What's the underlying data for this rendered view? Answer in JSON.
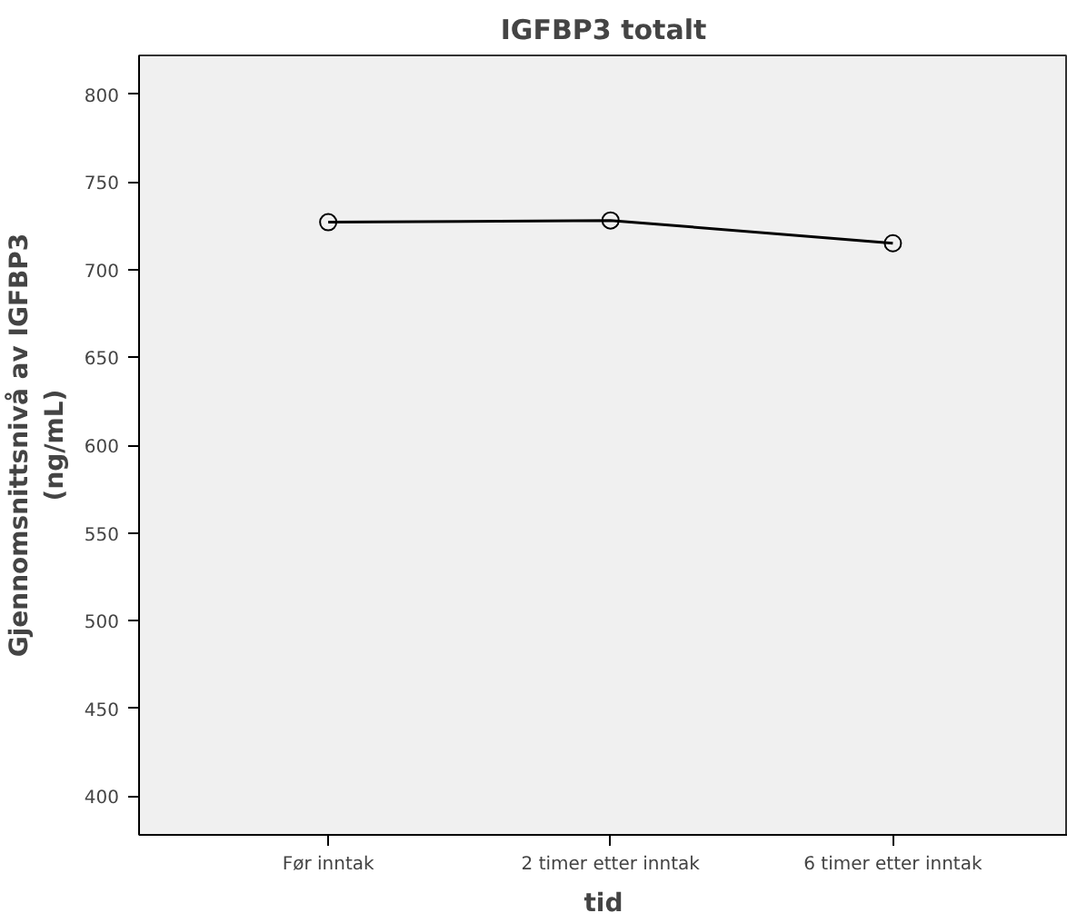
{
  "chart_data": {
    "type": "line",
    "title": "IGFBP3 totalt",
    "xlabel": "tid",
    "ylabel": "Gjennomsnittsnivå av IGFBP3\n(ng/mL)",
    "categories": [
      "Før inntak",
      "2 timer etter inntak",
      "6 timer etter inntak"
    ],
    "series": [
      {
        "color": "#000000",
        "values": [
          727,
          728,
          715
        ]
      }
    ],
    "ylim": [
      378,
      822
    ],
    "yticks": [
      400,
      450,
      500,
      550,
      600,
      650,
      700,
      750,
      800
    ],
    "grid": false,
    "marker": "circle",
    "line_style": "solid"
  }
}
